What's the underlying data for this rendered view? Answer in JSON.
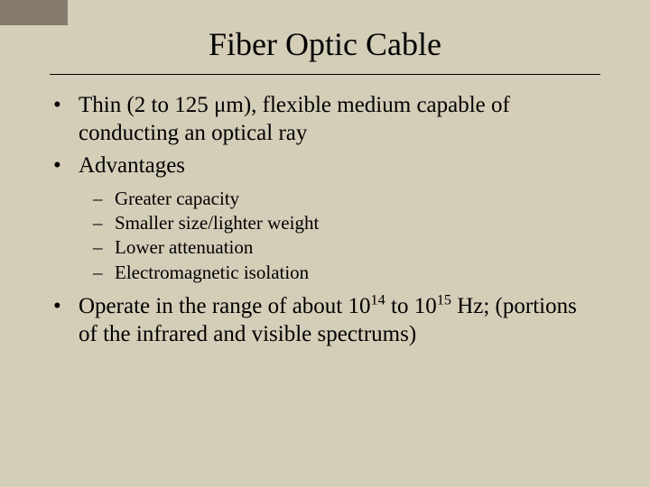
{
  "colors": {
    "background": "#d4cdb8",
    "text": "#000000",
    "rule": "#000000",
    "top_block": "#867a6d"
  },
  "typography": {
    "font_family": "Times New Roman",
    "title_fontsize_pt": 36,
    "body_fontsize_pt": 25,
    "sub_fontsize_pt": 21
  },
  "title": "Fiber Optic Cable",
  "bullets": [
    {
      "text": "Thin (2 to 125 μm), flexible medium capable of conducting an optical ray",
      "subitems": []
    },
    {
      "text": "Advantages",
      "subitems": [
        "Greater capacity",
        "Smaller size/lighter weight",
        "Lower attenuation",
        "Electromagnetic isolation"
      ]
    },
    {
      "text_html": "Operate in the range of about 10<sup>14</sup> to 10<sup>15</sup> Hz; (portions of the infrared and visible spectrums)",
      "subitems": []
    }
  ]
}
